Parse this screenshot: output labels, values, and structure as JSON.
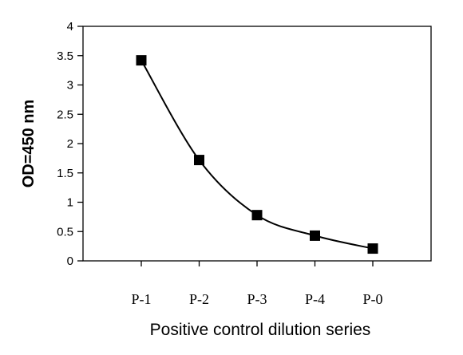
{
  "chart_data": {
    "type": "line",
    "categories": [
      "P-1",
      "P-2",
      "P-3",
      "P-4",
      "P-0"
    ],
    "series": [
      {
        "values": [
          3.42,
          1.72,
          0.78,
          0.43,
          0.21
        ],
        "marker": "square",
        "color": "#000000",
        "smooth": true
      }
    ],
    "title": "",
    "xlabel": "Positive control dilution series",
    "ylabel": "OD=450 nm",
    "ylim": [
      0,
      4
    ],
    "yticks": [
      0,
      0.5,
      1,
      1.5,
      2,
      2.5,
      3,
      3.5,
      4
    ],
    "ytick_labels": [
      "0",
      "0.5",
      "1",
      "1.5",
      "2",
      "2.5",
      "3",
      "3.5",
      "4"
    ],
    "grid": false,
    "legend": false
  }
}
